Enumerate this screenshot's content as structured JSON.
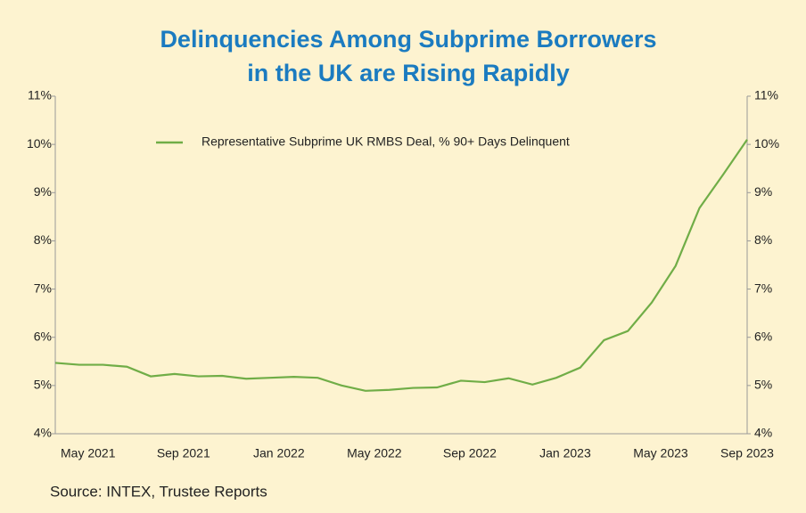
{
  "chart_data": {
    "type": "line",
    "title": [
      "Delinquencies Among Subprime Borrowers",
      "in the UK are Rising Rapidly"
    ],
    "source": "Source: INTEX, Trustee Reports",
    "categories": [
      null,
      "May 2021",
      null,
      null,
      null,
      "Sep 2021",
      null,
      null,
      null,
      "Jan 2022",
      null,
      null,
      null,
      "May 2022",
      null,
      null,
      null,
      "Sep 2022",
      null,
      null,
      null,
      "Jan 2023",
      null,
      null,
      null,
      "May 2023",
      null,
      null,
      null,
      "Sep 2023"
    ],
    "series": [
      {
        "name": "Representative Subprime UK RMBS Deal, % 90+ Days Delinquent",
        "color": "#70ad47",
        "values": [
          5.47,
          5.43,
          5.43,
          5.39,
          5.19,
          5.24,
          5.19,
          5.2,
          5.14,
          5.16,
          5.18,
          5.16,
          5.0,
          4.89,
          4.91,
          4.95,
          4.96,
          5.1,
          5.07,
          5.15,
          5.02,
          5.16,
          5.37,
          5.94,
          6.13,
          6.72,
          7.48,
          8.68,
          9.38,
          10.1
        ]
      }
    ],
    "ylim": [
      4,
      11
    ],
    "yticks": [
      {
        "value": 4,
        "label": "4%"
      },
      {
        "value": 5,
        "label": "5%"
      },
      {
        "value": 6,
        "label": "6%"
      },
      {
        "value": 7,
        "label": "7%"
      },
      {
        "value": 8,
        "label": "8%"
      },
      {
        "value": 9,
        "label": "9%"
      },
      {
        "value": 10,
        "label": "10%"
      },
      {
        "value": 11,
        "label": "11%"
      }
    ],
    "y2lim": [
      4,
      11
    ],
    "y2ticks": [
      {
        "value": 4,
        "label": "4%"
      },
      {
        "value": 5,
        "label": "5%"
      },
      {
        "value": 6,
        "label": "6%"
      },
      {
        "value": 7,
        "label": "7%"
      },
      {
        "value": 8,
        "label": "8%"
      },
      {
        "value": 9,
        "label": "9%"
      },
      {
        "value": 10,
        "label": "10%"
      },
      {
        "value": 11,
        "label": "11%"
      }
    ],
    "grid": false,
    "legend": "top"
  }
}
